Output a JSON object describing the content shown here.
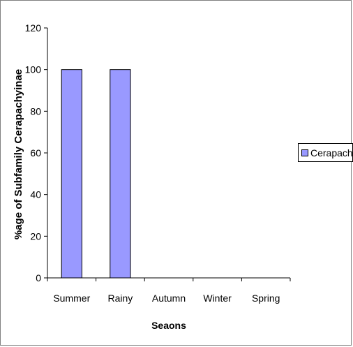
{
  "chart_data": {
    "type": "bar",
    "categories": [
      "Summer",
      "Rainy",
      "Autumn",
      "Winter",
      "Spring"
    ],
    "series": [
      {
        "name": "Cerapachys",
        "values": [
          100,
          100,
          0,
          0,
          0
        ]
      }
    ],
    "xlabel": "Seaons",
    "ylabel": "%age of Subfamily Cerapachyinae",
    "ylim": [
      0,
      120
    ],
    "yticks": [
      "0",
      "20",
      "40",
      "60",
      "80",
      "100",
      "120"
    ],
    "grid": false,
    "legend_position": "right",
    "bar_color": "#9999ff",
    "bar_edge_color": "#000000"
  },
  "legend": {
    "label": "Cerapachys"
  }
}
